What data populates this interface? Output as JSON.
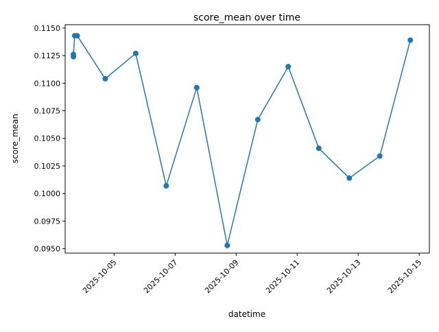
{
  "chart_data": {
    "type": "line",
    "title": "score_mean over time",
    "xlabel": "datetime",
    "ylabel": "score_mean",
    "x_type": "date",
    "xlim": [
      "2025-10-03T09:30:00",
      "2025-10-15T08:00:00"
    ],
    "ylim": [
      0.0946,
      0.1153
    ],
    "x_ticks": [
      "2025-10-05",
      "2025-10-07",
      "2025-10-09",
      "2025-10-11",
      "2025-10-13",
      "2025-10-15"
    ],
    "y_ticks": [
      "0.0950",
      "0.0975",
      "0.1000",
      "0.1025",
      "0.1050",
      "0.1075",
      "0.1100",
      "0.1125",
      "0.1150"
    ],
    "grid": false,
    "series": [
      {
        "color": "#1f77b4",
        "marker": "circle",
        "points": [
          {
            "x": "2025-10-03T16:00:00",
            "y": 0.1124
          },
          {
            "x": "2025-10-03T16:00:00",
            "y": 0.1126
          },
          {
            "x": "2025-10-03T17:00:00",
            "y": 0.1143
          },
          {
            "x": "2025-10-03T19:00:00",
            "y": 0.1143
          },
          {
            "x": "2025-10-04T17:00:00",
            "y": 0.1104
          },
          {
            "x": "2025-10-05T17:00:00",
            "y": 0.1127
          },
          {
            "x": "2025-10-06T17:00:00",
            "y": 0.1007
          },
          {
            "x": "2025-10-07T17:00:00",
            "y": 0.1096
          },
          {
            "x": "2025-10-08T17:00:00",
            "y": 0.0953
          },
          {
            "x": "2025-10-09T17:00:00",
            "y": 0.1067
          },
          {
            "x": "2025-10-10T17:00:00",
            "y": 0.1115
          },
          {
            "x": "2025-10-11T17:00:00",
            "y": 0.1041
          },
          {
            "x": "2025-10-12T17:00:00",
            "y": 0.1014
          },
          {
            "x": "2025-10-13T17:00:00",
            "y": 0.1034
          },
          {
            "x": "2025-10-14T17:00:00",
            "y": 0.1139
          }
        ]
      }
    ]
  }
}
